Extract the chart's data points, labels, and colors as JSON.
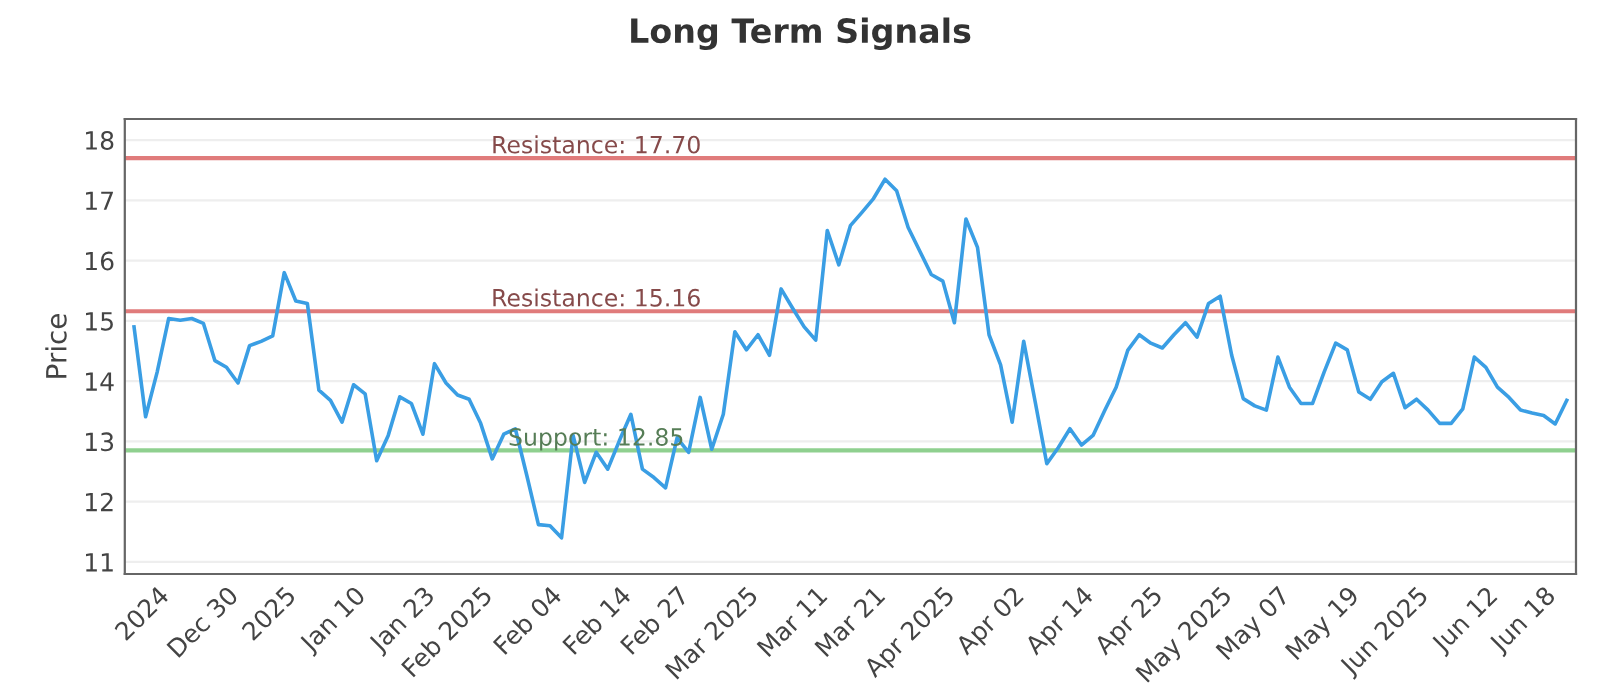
{
  "chart_data": {
    "type": "line",
    "title": "Long Term Signals",
    "ylabel": "Price",
    "categories": [
      null,
      null,
      "2024",
      null,
      null,
      null,
      null,
      null,
      "Dec 30",
      null,
      null,
      null,
      null,
      "2025",
      null,
      null,
      null,
      null,
      null,
      "Jan 10",
      null,
      null,
      null,
      null,
      null,
      "Jan 23",
      null,
      null,
      null,
      null,
      "Feb 2025",
      null,
      null,
      null,
      null,
      null,
      "Feb 04",
      null,
      null,
      null,
      null,
      null,
      "Feb 14",
      null,
      null,
      null,
      null,
      "Feb 27",
      null,
      null,
      null,
      null,
      null,
      "Mar 2025",
      null,
      null,
      null,
      null,
      null,
      "Mar 11",
      null,
      null,
      null,
      null,
      "Mar 21",
      null,
      null,
      null,
      null,
      null,
      "Apr 2025",
      null,
      null,
      null,
      null,
      null,
      "Apr 02",
      null,
      null,
      null,
      null,
      null,
      "Apr 14",
      null,
      null,
      null,
      null,
      null,
      "Apr 25",
      null,
      null,
      null,
      null,
      null,
      "May 2025",
      null,
      null,
      null,
      null,
      "May 07",
      null,
      null,
      null,
      null,
      null,
      "May 19",
      null,
      null,
      null,
      null,
      null,
      "Jun 2025",
      null,
      null,
      null,
      null,
      null,
      "Jun 12",
      null,
      null,
      null,
      null,
      "Jun 18",
      null,
      null
    ],
    "series": [
      {
        "color": "#3a9ee4",
        "values": [
          14.9,
          13.41,
          14.15,
          15.04,
          15.01,
          15.04,
          14.96,
          14.34,
          14.23,
          13.97,
          14.59,
          14.66,
          14.75,
          15.8,
          15.33,
          15.29,
          13.85,
          13.68,
          13.32,
          13.94,
          13.79,
          12.68,
          13.1,
          13.74,
          13.63,
          13.12,
          14.29,
          13.97,
          13.77,
          13.7,
          13.3,
          12.71,
          13.12,
          13.21,
          12.43,
          11.62,
          11.6,
          11.4,
          13.1,
          12.32,
          12.82,
          12.54,
          13.01,
          13.45,
          12.54,
          12.4,
          12.23,
          13.06,
          12.82,
          13.73,
          12.87,
          13.45,
          14.82,
          14.52,
          14.77,
          14.43,
          15.53,
          15.21,
          14.9,
          14.68,
          16.5,
          15.93,
          16.58,
          16.8,
          17.03,
          17.35,
          17.16,
          16.55,
          16.16,
          15.77,
          15.66,
          14.97,
          16.69,
          16.22,
          14.77,
          14.27,
          13.32,
          14.66,
          13.65,
          12.63,
          12.9,
          13.21,
          12.94,
          13.1,
          13.51,
          13.9,
          14.51,
          14.77,
          14.63,
          14.55,
          14.77,
          14.97,
          14.73,
          15.29,
          15.41,
          14.43,
          13.71,
          13.59,
          13.52,
          14.4,
          13.9,
          13.63,
          13.63,
          14.15,
          14.63,
          14.52,
          13.82,
          13.7,
          13.99,
          14.13,
          13.56,
          13.7,
          13.52,
          13.3,
          13.3,
          13.54,
          14.4,
          14.23,
          13.9,
          13.73,
          13.52,
          13.47,
          13.43,
          13.29,
          13.68
        ]
      }
    ],
    "ylim": [
      10.8,
      18.35
    ],
    "yticks": [
      11,
      12,
      13,
      14,
      15,
      16,
      17,
      18
    ],
    "grid": "y",
    "marker": "none",
    "line_style": "solid",
    "ref_lines": [
      {
        "axis": "y",
        "value": 17.7,
        "label": "Resistance: 17.70",
        "color": "#e07b7b"
      },
      {
        "axis": "y",
        "value": 15.16,
        "label": "Resistance: 15.16",
        "color": "#e07b7b"
      },
      {
        "axis": "y",
        "value": 12.85,
        "label": "Support: 12.85",
        "color": "#8fd08f"
      }
    ]
  }
}
